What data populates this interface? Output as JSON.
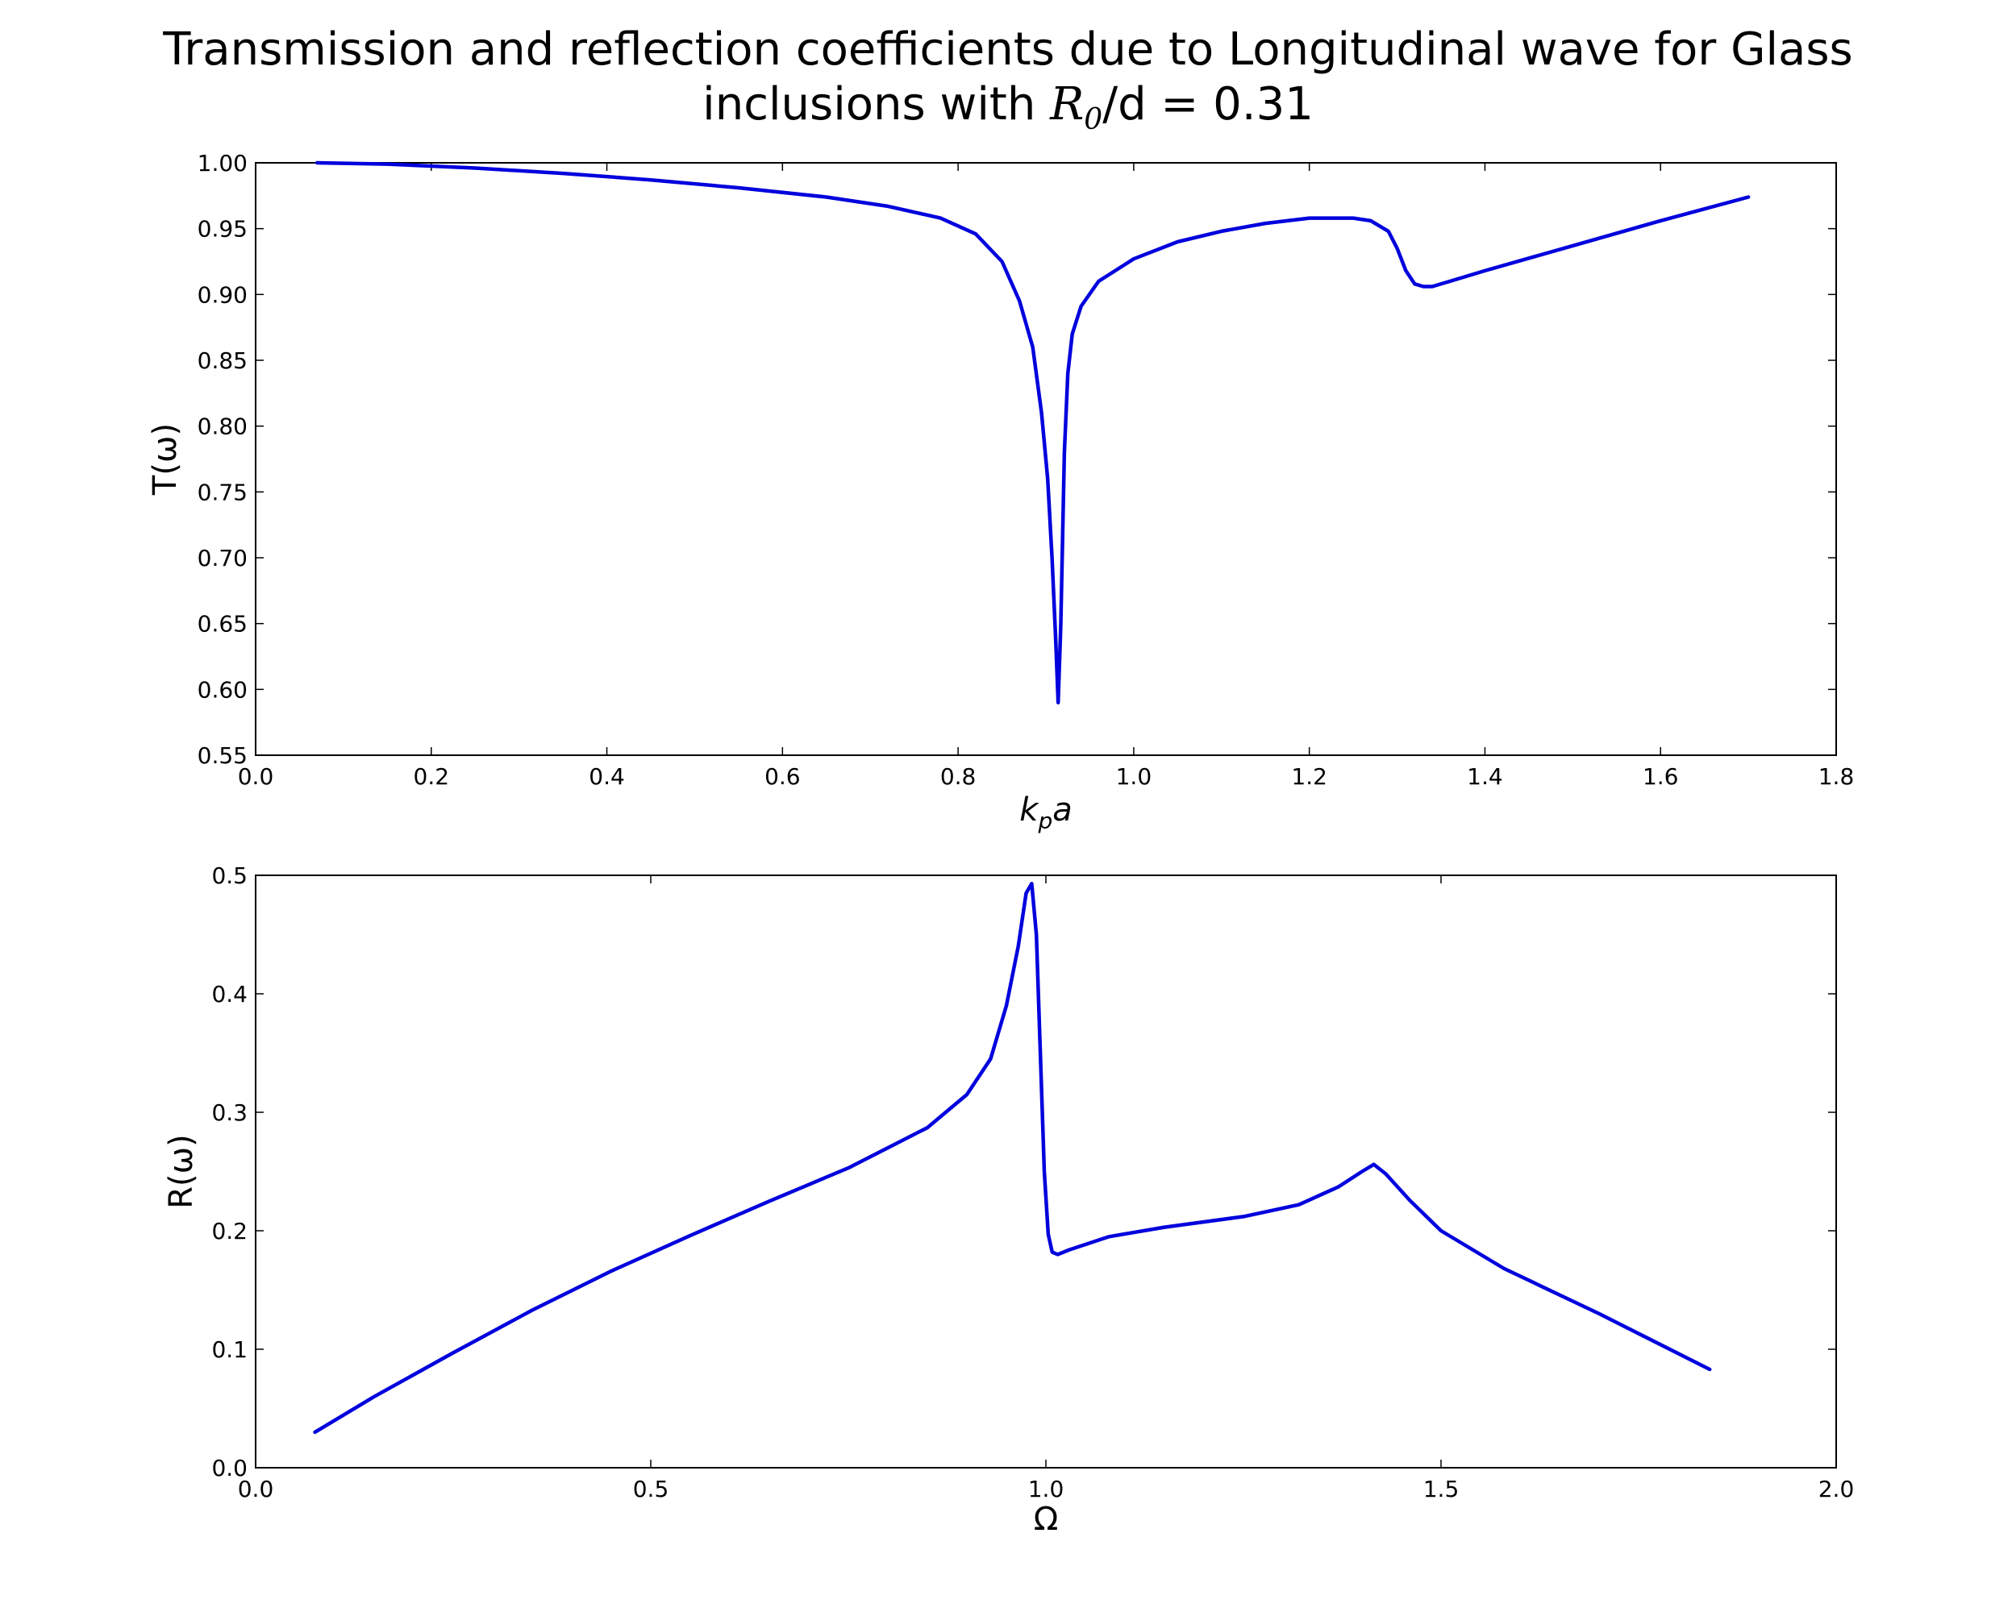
{
  "figure": {
    "title_line1": "Transmission and reflection coefficients due to Longitudinal wave for Glass",
    "title_line2_pre": "inclusions with ",
    "title_math_symbol": "R",
    "title_math_sub": "0",
    "title_line2_post": "/d = 0.31",
    "line_color": "#0000dd"
  },
  "chart_data": [
    {
      "type": "line",
      "id": "transmission",
      "title": "",
      "xlabel": "k_p a",
      "xlabel_main": "k",
      "xlabel_sub": "p",
      "xlabel_tail": "a",
      "ylabel": "T(ω)",
      "xlim": [
        0.0,
        1.8
      ],
      "ylim": [
        0.55,
        1.0
      ],
      "xticks": [
        "0.0",
        "0.2",
        "0.4",
        "0.6",
        "0.8",
        "1.0",
        "1.2",
        "1.4",
        "1.6",
        "1.8"
      ],
      "xtick_values": [
        0.0,
        0.2,
        0.4,
        0.6,
        0.8,
        1.0,
        1.2,
        1.4,
        1.6,
        1.8
      ],
      "yticks": [
        "0.55",
        "0.60",
        "0.65",
        "0.70",
        "0.75",
        "0.80",
        "0.85",
        "0.90",
        "0.95",
        "1.00"
      ],
      "ytick_values": [
        0.55,
        0.6,
        0.65,
        0.7,
        0.75,
        0.8,
        0.85,
        0.9,
        0.95,
        1.0
      ],
      "grid": false,
      "series": [
        {
          "x": [
            0.07,
            0.15,
            0.25,
            0.35,
            0.45,
            0.55,
            0.65,
            0.72,
            0.78,
            0.82,
            0.85,
            0.87,
            0.885,
            0.895,
            0.902,
            0.907,
            0.911,
            0.914,
            0.917,
            0.921,
            0.925,
            0.93,
            0.94,
            0.96,
            1.0,
            1.05,
            1.1,
            1.15,
            1.2,
            1.25,
            1.27,
            1.29,
            1.3,
            1.31,
            1.32,
            1.33,
            1.34,
            1.36,
            1.4,
            1.5,
            1.6,
            1.7
          ],
          "y": [
            1.0,
            0.999,
            0.996,
            0.992,
            0.987,
            0.981,
            0.974,
            0.967,
            0.958,
            0.946,
            0.925,
            0.895,
            0.86,
            0.81,
            0.76,
            0.7,
            0.64,
            0.59,
            0.65,
            0.78,
            0.84,
            0.87,
            0.891,
            0.91,
            0.927,
            0.94,
            0.948,
            0.954,
            0.958,
            0.958,
            0.956,
            0.948,
            0.935,
            0.918,
            0.908,
            0.906,
            0.906,
            0.91,
            0.918,
            0.937,
            0.956,
            0.974
          ]
        }
      ]
    },
    {
      "type": "line",
      "id": "reflection",
      "title": "",
      "xlabel": "Ω",
      "ylabel": "R(ω)",
      "xlim": [
        0.0,
        2.0
      ],
      "ylim": [
        0.0,
        0.5
      ],
      "xticks": [
        "0.0",
        "0.5",
        "1.0",
        "1.5",
        "2.0"
      ],
      "xtick_values": [
        0.0,
        0.5,
        1.0,
        1.5,
        2.0
      ],
      "yticks": [
        "0.0",
        "0.1",
        "0.2",
        "0.3",
        "0.4",
        "0.5"
      ],
      "ytick_values": [
        0.0,
        0.1,
        0.2,
        0.3,
        0.4,
        0.5
      ],
      "grid": false,
      "series": [
        {
          "x": [
            0.075,
            0.15,
            0.25,
            0.35,
            0.45,
            0.55,
            0.65,
            0.75,
            0.85,
            0.9,
            0.93,
            0.95,
            0.965,
            0.975,
            0.982,
            0.988,
            0.993,
            0.998,
            1.003,
            1.008,
            1.015,
            1.03,
            1.08,
            1.15,
            1.25,
            1.32,
            1.37,
            1.4,
            1.415,
            1.43,
            1.46,
            1.5,
            1.58,
            1.7,
            1.84
          ],
          "y": [
            0.03,
            0.06,
            0.097,
            0.133,
            0.166,
            0.196,
            0.225,
            0.253,
            0.287,
            0.315,
            0.345,
            0.39,
            0.44,
            0.485,
            0.493,
            0.45,
            0.35,
            0.25,
            0.197,
            0.182,
            0.18,
            0.184,
            0.195,
            0.203,
            0.212,
            0.222,
            0.237,
            0.25,
            0.256,
            0.248,
            0.226,
            0.2,
            0.168,
            0.13,
            0.083
          ]
        }
      ]
    }
  ]
}
